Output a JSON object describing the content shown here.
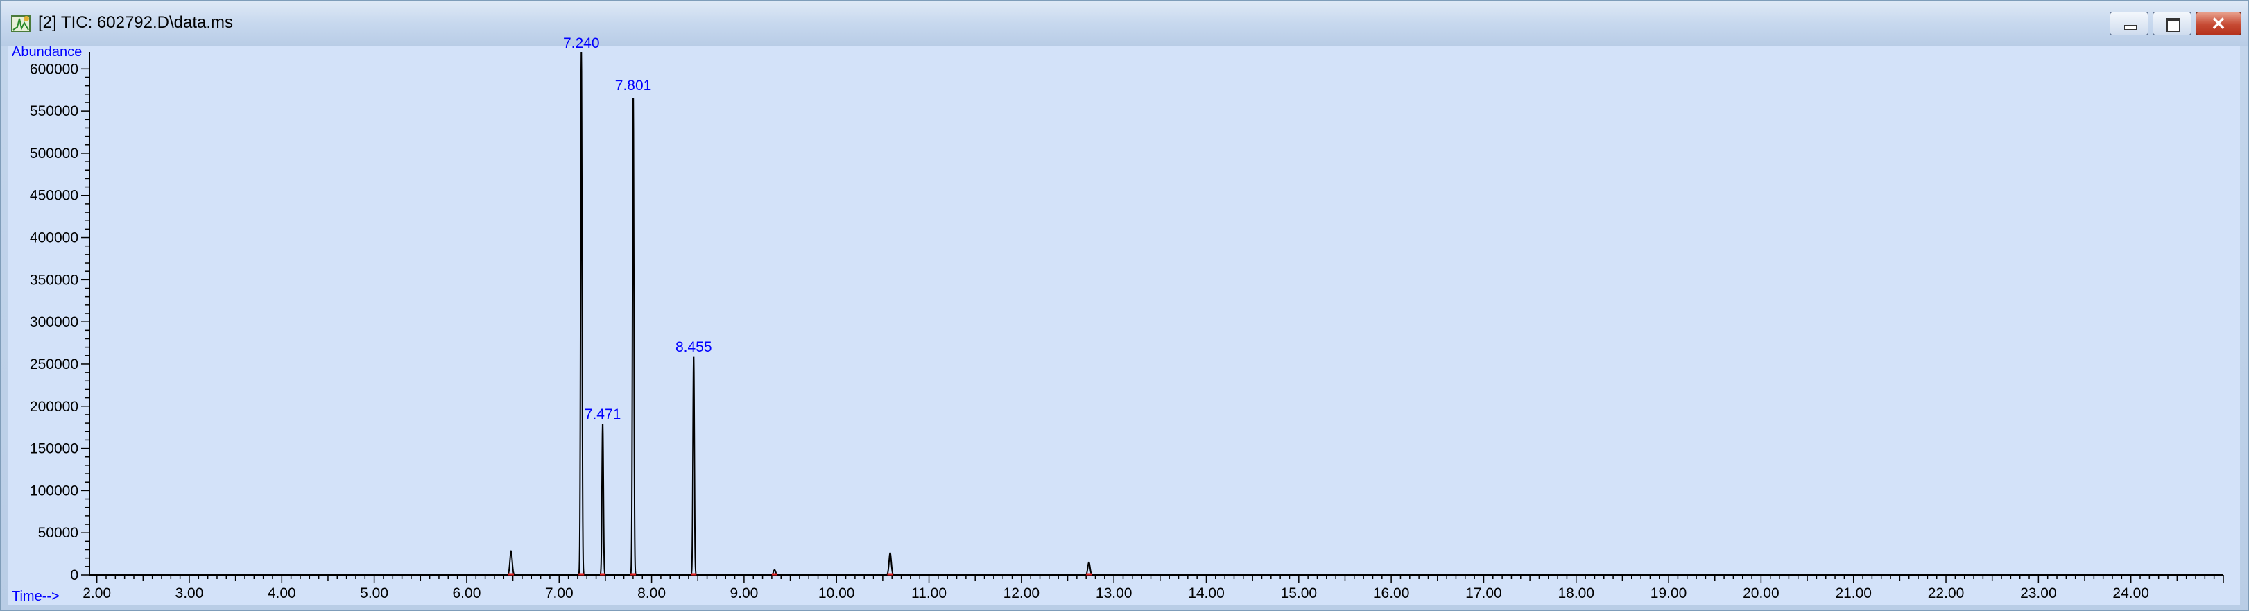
{
  "window": {
    "title": "[2] TIC: 602792.D\\data.ms",
    "icons": [
      "app-chromatogram-icon",
      "minimize-icon",
      "maximize-icon",
      "close-icon"
    ]
  },
  "chart_data": {
    "type": "line",
    "xlabel": "Time-->",
    "ylabel": "Abundance",
    "xlim": [
      1.92,
      25.0
    ],
    "ylim": [
      0,
      620000
    ],
    "x_ticks": [
      "2.00",
      "3.00",
      "4.00",
      "5.00",
      "6.00",
      "7.00",
      "8.00",
      "9.00",
      "10.00",
      "11.00",
      "12.00",
      "13.00",
      "14.00",
      "15.00",
      "16.00",
      "17.00",
      "18.00",
      "19.00",
      "20.00",
      "21.00",
      "22.00",
      "23.00",
      "24.00"
    ],
    "y_ticks": [
      "0",
      "50000",
      "100000",
      "150000",
      "200000",
      "250000",
      "300000",
      "350000",
      "400000",
      "450000",
      "500000",
      "550000",
      "600000"
    ],
    "grid": false,
    "line_color": "#000000",
    "label_color": "#0000ff",
    "peaks": [
      {
        "rt": 6.48,
        "abundance": 28000
      },
      {
        "rt": 7.24,
        "abundance": 620000,
        "label": "7.240"
      },
      {
        "rt": 7.471,
        "abundance": 180000,
        "label": "7.471"
      },
      {
        "rt": 7.801,
        "abundance": 570000,
        "label": "7.801"
      },
      {
        "rt": 8.455,
        "abundance": 260000,
        "label": "8.455"
      },
      {
        "rt": 9.33,
        "abundance": 6000
      },
      {
        "rt": 10.58,
        "abundance": 26000
      },
      {
        "rt": 12.73,
        "abundance": 15000
      }
    ]
  }
}
